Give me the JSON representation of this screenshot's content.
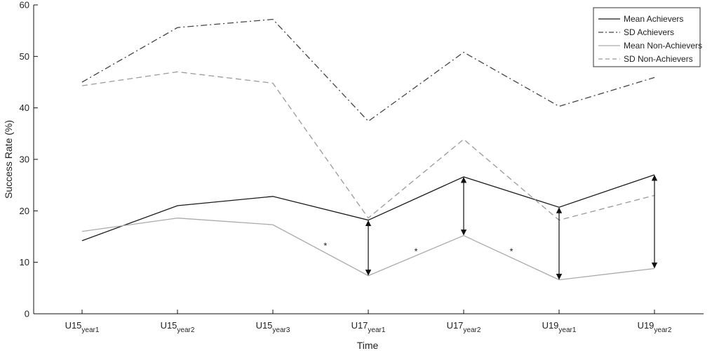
{
  "chart_data": {
    "type": "line",
    "title": "",
    "xlabel": "Time",
    "ylabel": "Success Rate (%)",
    "ylim": [
      0,
      60
    ],
    "yticks": [
      0,
      10,
      20,
      30,
      40,
      50,
      60
    ],
    "grid": false,
    "legend_position": "top-right",
    "categories": [
      {
        "main": "U15",
        "sub": "year1"
      },
      {
        "main": "U15",
        "sub": "year2"
      },
      {
        "main": "U15",
        "sub": "year3"
      },
      {
        "main": "U17",
        "sub": "year1"
      },
      {
        "main": "U17",
        "sub": "year2"
      },
      {
        "main": "U19",
        "sub": "year1"
      },
      {
        "main": "U19",
        "sub": "year2"
      }
    ],
    "series": [
      {
        "name": "Mean Achievers",
        "values": [
          14.2,
          21.0,
          22.8,
          18.2,
          26.6,
          20.7,
          27.0
        ],
        "color": "#1a1a1a",
        "dash": "solid"
      },
      {
        "name": "SD Achievers",
        "values": [
          45.0,
          55.6,
          57.2,
          37.4,
          50.8,
          40.3,
          45.9
        ],
        "color": "#444444",
        "dash": "dashdot"
      },
      {
        "name": "Mean Non-Achievers",
        "values": [
          16.0,
          18.6,
          17.3,
          7.4,
          15.2,
          6.6,
          8.8
        ],
        "color": "#aaaaaa",
        "dash": "solid"
      },
      {
        "name": "SD Non-Achievers",
        "values": [
          44.3,
          47.0,
          44.8,
          18.6,
          33.9,
          18.2,
          23.0
        ],
        "color": "#9a9a9a",
        "dash": "dashed"
      }
    ],
    "annotations": {
      "double_arrows": [
        {
          "x_index": 3,
          "from": 7.4,
          "to": 18.2
        },
        {
          "x_index": 4,
          "from": 15.2,
          "to": 26.6
        },
        {
          "x_index": 5,
          "from": 6.6,
          "to": 20.7
        },
        {
          "x_index": 6,
          "from": 8.8,
          "to": 27.0
        }
      ],
      "markers": [
        {
          "x_pos": 2.55,
          "y": 13.3,
          "text": "*"
        },
        {
          "x_pos": 3.5,
          "y": 12.2,
          "text": "*"
        },
        {
          "x_pos": 4.5,
          "y": 12.2,
          "text": "*"
        }
      ]
    }
  }
}
